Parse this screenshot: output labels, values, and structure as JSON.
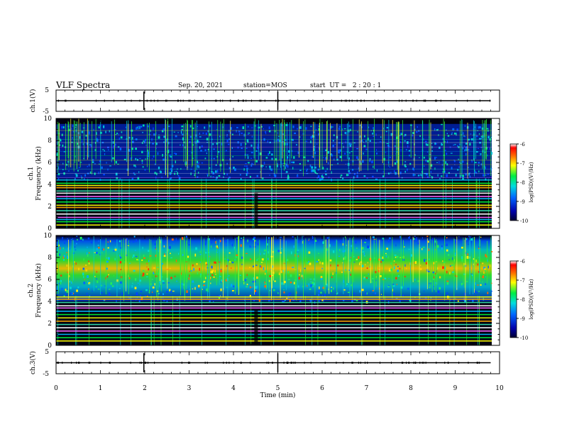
{
  "header": {
    "title": "VLF Spectra",
    "date": "Sep. 20, 2021",
    "station": "station=MOS",
    "start": "start  UT =   2 : 20 : 1"
  },
  "chart_data": [
    {
      "type": "line",
      "panel": "ch.1(V)",
      "ylabel": "ch.1(V)",
      "ylim": [
        -5,
        5
      ],
      "yticks": [
        "5",
        "-5"
      ],
      "xlim": [
        0,
        10
      ],
      "series": [
        {
          "x": [
            0,
            9.8
          ],
          "values": [
            0,
            0
          ]
        }
      ]
    },
    {
      "type": "heatmap",
      "panel": "ch.1",
      "ylabel": "ch.1\nFrequency (kHz)",
      "ylim": [
        0,
        10
      ],
      "yticks": [
        "0",
        "2",
        "4",
        "6",
        "8",
        "10"
      ],
      "xlim": [
        0,
        10
      ],
      "colorbar": {
        "label": "log(PSD)(V²/Hz)",
        "ticks": [
          "-6",
          "-7",
          "-8",
          "-9",
          "-10"
        ],
        "range": [
          -10,
          -6
        ]
      },
      "lines_khz": [
        0.3,
        0.6,
        0.8,
        1.0,
        1.3,
        1.6,
        1.9,
        2.1,
        2.4,
        2.7,
        2.9,
        3.2,
        3.4,
        3.7,
        3.9,
        4.1,
        4.4,
        4.6,
        5.0,
        5.4,
        5.8,
        6.2,
        6.6,
        7.0,
        7.4,
        7.8,
        8.1,
        8.5,
        8.9
      ],
      "noise_band_khz": [
        4.5,
        9.5
      ]
    },
    {
      "type": "heatmap",
      "panel": "ch.2",
      "ylabel": "ch.2\nFrequency (kHz)",
      "ylim": [
        0,
        10
      ],
      "yticks": [
        "0",
        "2",
        "4",
        "6",
        "8",
        "10"
      ],
      "xlim": [
        0,
        10
      ],
      "colorbar": {
        "label": "log(PSD)(V²/Hz)",
        "ticks": [
          "-6",
          "-7",
          "-8",
          "-9",
          "-10"
        ],
        "range": [
          -10,
          -6
        ]
      },
      "lines_khz": [
        0.4,
        0.7,
        1.0,
        1.3,
        1.6,
        1.9,
        2.2,
        2.5,
        2.8,
        3.1,
        3.4,
        3.6,
        3.9,
        4.2,
        4.4
      ],
      "noise_band_khz": [
        4.0,
        10.0
      ],
      "peak_khz": 7.0
    },
    {
      "type": "line",
      "panel": "ch.3(V)",
      "ylabel": "ch.3(V)",
      "ylim": [
        -5,
        5
      ],
      "yticks": [
        "5",
        "-5"
      ],
      "xlim": [
        0,
        10
      ],
      "series": [
        {
          "x": [
            0,
            9.8
          ],
          "values": [
            0,
            0
          ]
        }
      ]
    }
  ],
  "xaxis": {
    "label": "Time  (min)",
    "ticks": [
      "0",
      "1",
      "2",
      "3",
      "4",
      "5",
      "6",
      "7",
      "8",
      "9",
      "10"
    ],
    "range": [
      0,
      10
    ]
  }
}
